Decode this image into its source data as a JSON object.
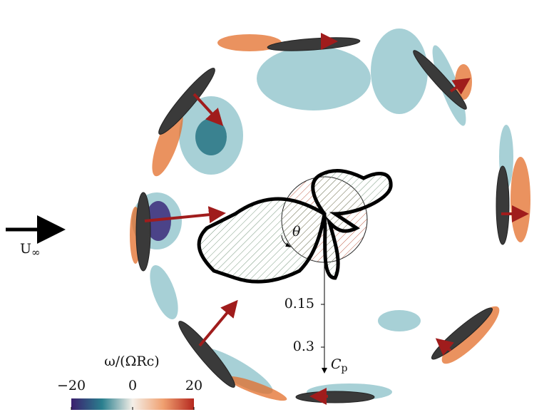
{
  "figure": {
    "flow_label": "U",
    "flow_subscript": "∞",
    "theta_label": "θ",
    "cp_axis": {
      "label": "C",
      "label_subscript": "p",
      "ticks": [
        0.15,
        0.3
      ]
    },
    "colorbar": {
      "label": "ω/(ΩRc)",
      "lim": [
        -20,
        20
      ],
      "ticks": [
        {
          "value": -20,
          "label": "−20"
        },
        0,
        20
      ]
    }
  }
}
